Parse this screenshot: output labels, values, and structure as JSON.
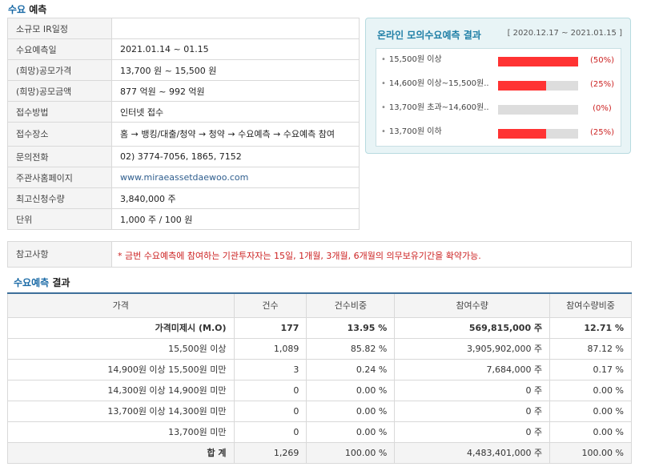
{
  "offering": {
    "title_highlight": "수요",
    "title_rest": " 예측",
    "rows": [
      {
        "label": "소규모 IR일정",
        "value": ""
      },
      {
        "label": "수요예측일",
        "value": "2021.01.14 ~ 01.15"
      },
      {
        "label": "(희망)공모가격",
        "value": "13,700 원 ~ 15,500 원"
      },
      {
        "label": "(희망)공모금액",
        "value": "877 억원 ~ 992 억원"
      },
      {
        "label": "접수방법",
        "value": "인터넷 접수"
      },
      {
        "label": "접수장소",
        "value": "홈 → 뱅킹/대출/청약 → 청약 → 수요예측 → 수요예측 참여"
      },
      {
        "label": "문의전화",
        "value": "02) 3774-7056, 1865, 7152"
      },
      {
        "label": "주관사홈페이지",
        "value": "www.miraeassetdaewoo.com"
      },
      {
        "label": "최고신청수량",
        "value": "3,840,000 주"
      },
      {
        "label": "단위",
        "value": "1,000 주 / 100 원"
      }
    ]
  },
  "mock_forecast": {
    "title": "온라인 모의수요예측 결과",
    "range": "[ 2020.12.17 ~ 2021.01.15 ]",
    "bullet": "•",
    "rows": [
      {
        "label": "15,500원 이상",
        "fraction": 1.0,
        "pct": "(50%)"
      },
      {
        "label": "14,600원 이상~15,500원..",
        "fraction": 0.6,
        "pct": "(25%)"
      },
      {
        "label": "13,700원 초과~14,600원..",
        "fraction": 0.0,
        "pct": "(0%)"
      },
      {
        "label": "13,700원 이하",
        "fraction": 0.6,
        "pct": "(25%)"
      }
    ]
  },
  "reference": {
    "label": "참고사항",
    "note": "* 금번 수요예측에 참여하는 기관투자자는 15일, 1개월, 3개월, 6개월의 의무보유기간을 확약가능."
  },
  "result": {
    "title_highlight": "수요예측",
    "title_rest": " 결과",
    "headers": [
      "가격",
      "건수",
      "건수비중",
      "참여수량",
      "참여수량비중"
    ],
    "rows": [
      [
        "가격미제시 (M.O)",
        "177",
        "13.95 %",
        "569,815,000 주",
        "12.71 %"
      ],
      [
        "15,500원 이상",
        "1,089",
        "85.82 %",
        "3,905,902,000 주",
        "87.12 %"
      ],
      [
        "14,900원 이상 15,500원 미만",
        "3",
        "0.24 %",
        "7,684,000 주",
        "0.17 %"
      ],
      [
        "14,300원 이상 14,900원 미만",
        "0",
        "0.00 %",
        "0 주",
        "0.00 %"
      ],
      [
        "13,700원 이상 14,300원 미만",
        "0",
        "0.00 %",
        "0 주",
        "0.00 %"
      ],
      [
        "13,700원 미만",
        "0",
        "0.00 %",
        "0 주",
        "0.00 %"
      ],
      [
        "합 계",
        "1,269",
        "100.00 %",
        "4,483,401,000 주",
        "100.00 %"
      ]
    ]
  }
}
